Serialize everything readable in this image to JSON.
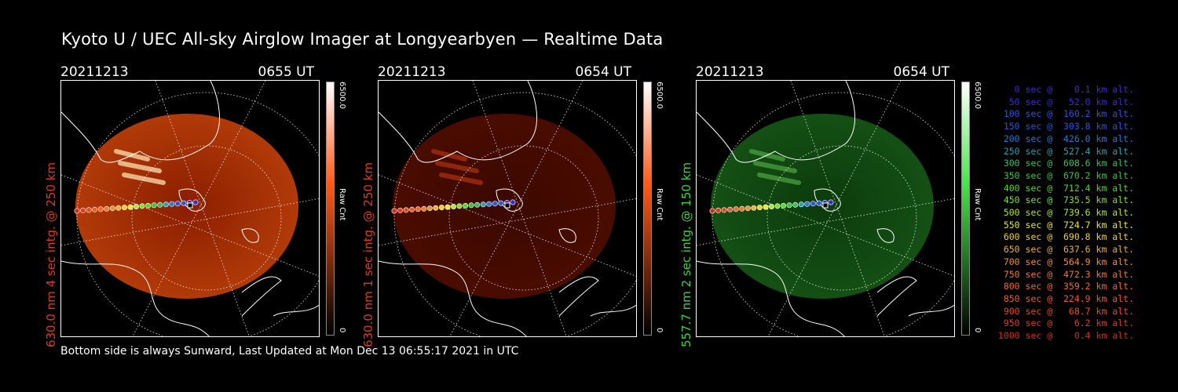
{
  "title": "Kyoto U / UEC All-sky Airglow Imager at Longyearbyen — Realtime Data",
  "footer": "Bottom side is always Sunward, Last Updated at Mon Dec 13 06:55:17 2021 in UTC",
  "colorbar": {
    "max": "6500.0",
    "unit": "Raw Cnt",
    "min": "0"
  },
  "panels": [
    {
      "date": "20211213",
      "time": "0655 UT",
      "axis_label": "630.0 nm 4 sec intg. @ 250 km",
      "axis_color": "#e03a1e",
      "cbar_color": "#ff5a1a",
      "glow": "bright-red"
    },
    {
      "date": "20211213",
      "time": "0654 UT",
      "axis_label": "630.0 nm 1 sec intg. @ 250 km",
      "axis_color": "#e03a1e",
      "cbar_color": "#ff5a1a",
      "glow": "dim-red"
    },
    {
      "date": "20211213",
      "time": "0654 UT",
      "axis_label": "557.7 nm 2 sec intg. @ 150 km",
      "axis_color": "#3fd23f",
      "cbar_color": "#44e844",
      "glow": "green"
    }
  ],
  "legend": [
    {
      "text": "   0 sec @    0.1 km alt.",
      "color": "#3a2bd8"
    },
    {
      "text": "  50 sec @   52.0 km alt.",
      "color": "#3a2bd8"
    },
    {
      "text": " 100 sec @  160.2 km alt.",
      "color": "#2c55e0"
    },
    {
      "text": " 150 sec @  303.8 km alt.",
      "color": "#2c55e0"
    },
    {
      "text": " 200 sec @  426.0 km alt.",
      "color": "#2a78d8"
    },
    {
      "text": " 250 sec @  527.4 km alt.",
      "color": "#2aa0b0"
    },
    {
      "text": " 300 sec @  608.6 km alt.",
      "color": "#33c060"
    },
    {
      "text": " 350 sec @  670.2 km alt.",
      "color": "#33c840"
    },
    {
      "text": " 400 sec @  712.4 km alt.",
      "color": "#50d830"
    },
    {
      "text": " 450 sec @  735.5 km alt.",
      "color": "#80e030"
    },
    {
      "text": " 500 sec @  739.6 km alt.",
      "color": "#b0e830"
    },
    {
      "text": " 550 sec @  724.7 km alt.",
      "color": "#e8e830"
    },
    {
      "text": " 600 sec @  690.8 km alt.",
      "color": "#f0d030"
    },
    {
      "text": " 650 sec @  637.6 km alt.",
      "color": "#f0b030"
    },
    {
      "text": " 700 sec @  564.9 km alt.",
      "color": "#f09030"
    },
    {
      "text": " 750 sec @  472.3 km alt.",
      "color": "#f07830"
    },
    {
      "text": " 800 sec @  359.2 km alt.",
      "color": "#f06828"
    },
    {
      "text": " 850 sec @  224.9 km alt.",
      "color": "#f05a28"
    },
    {
      "text": " 900 sec @   68.7 km alt.",
      "color": "#e84a20"
    },
    {
      "text": " 950 sec @    6.2 km alt.",
      "color": "#e03a1e"
    },
    {
      "text": "1000 sec @    0.4 km alt.",
      "color": "#d82a18"
    }
  ]
}
